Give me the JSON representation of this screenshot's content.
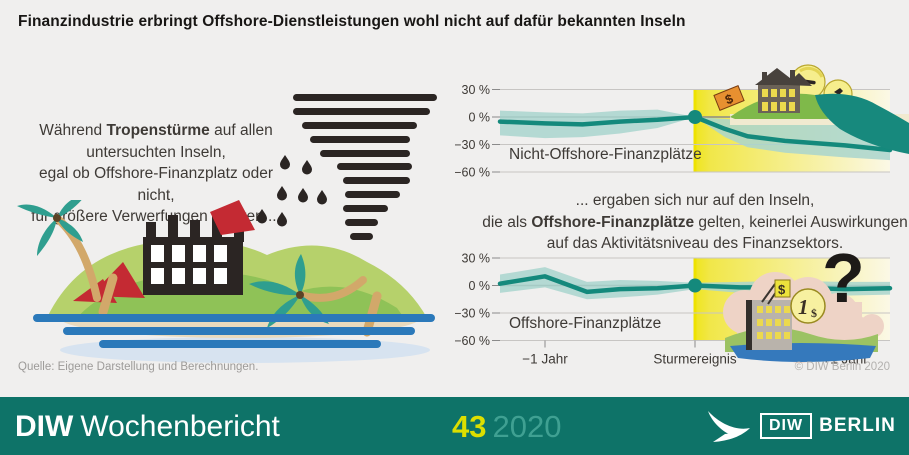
{
  "header": {
    "title": "Finanzindustrie erbringt Offshore-Dienstleistungen wohl nicht auf dafür bekannten Inseln"
  },
  "left_panel": {
    "narrative": {
      "line1_pre": "Während ",
      "line1_bold": "Tropenstürme",
      "line1_post": " auf allen",
      "line2": "untersuchten Inseln,",
      "line3": "egal ob Offshore-Finanzplatz oder nicht,",
      "line4": "für größere Verwerfungen sorgten ..."
    }
  },
  "right_panel": {
    "narrative": {
      "line1": "... ergaben sich nur auf den Inseln,",
      "line2_pre": "die als ",
      "line2_bold": "Offshore-Finanzplätze",
      "line2_post": " gelten, keinerlei Auswirkungen",
      "line3": "auf das Aktivitätsniveau des Finanzsektors."
    }
  },
  "chart_data": [
    {
      "type": "line",
      "label": "Nicht-Offshore-Finanzplätze",
      "ylim": [
        -60,
        30
      ],
      "yticks": [
        30,
        0,
        -30,
        -60
      ],
      "ytick_labels": [
        "30 %",
        "0 %",
        "−30 %",
        "−60 %"
      ],
      "xlim": [
        -1.3,
        1.3
      ],
      "xticks": [
        -1,
        0,
        1
      ],
      "xtick_labels": [
        "−1 Jahr",
        "Sturmereignis",
        "+1 Jahr"
      ],
      "show_x_labels": false,
      "event_x": 0,
      "x": [
        -1.3,
        -1.0,
        -0.75,
        -0.5,
        -0.25,
        0,
        0.2,
        0.35,
        0.6,
        1.0,
        1.3
      ],
      "y": [
        -5,
        -7,
        -8,
        -5,
        -3,
        0,
        -13,
        -21,
        -26,
        -31,
        -36
      ],
      "band_upper": [
        7,
        5,
        4,
        7,
        8,
        0,
        -2,
        -4,
        -5,
        -6,
        -7
      ],
      "band_lower": [
        -20,
        -23,
        -22,
        -18,
        -12,
        0,
        -22,
        -33,
        -39,
        -44,
        -47
      ]
    },
    {
      "type": "line",
      "label": "Offshore-Finanzplätze",
      "ylim": [
        -60,
        30
      ],
      "yticks": [
        30,
        0,
        -30,
        -60
      ],
      "ytick_labels": [
        "30 %",
        "0 %",
        "−30 %",
        "−60 %"
      ],
      "xlim": [
        -1.3,
        1.3
      ],
      "xticks": [
        -1,
        0,
        1
      ],
      "xtick_labels": [
        "−1 Jahr",
        "Sturmereignis",
        "+1 Jahr"
      ],
      "show_x_labels": true,
      "event_x": 0,
      "x": [
        -1.3,
        -1.0,
        -0.72,
        -0.5,
        -0.25,
        0,
        0.3,
        0.6,
        1.0,
        1.3
      ],
      "y": [
        2,
        10,
        -7,
        -4,
        -3,
        0,
        -2,
        -2,
        -4,
        -3
      ],
      "band_upper": [
        12,
        20,
        4,
        6,
        5,
        3,
        4,
        5,
        4,
        4
      ],
      "band_lower": [
        -8,
        -2,
        -15,
        -13,
        -10,
        -4,
        -8,
        -10,
        -11,
        -10
      ]
    }
  ],
  "source": "Quelle: Eigene Darstellung und Berechnungen.",
  "copyright": "© DIW Berlin 2020",
  "footer": {
    "brand_bold": "DIW",
    "brand_regular": "Wochenbericht",
    "issue": "43",
    "year": "2020",
    "logo": {
      "diw": "DIW",
      "berlin": "BERLIN"
    }
  },
  "palette": {
    "line": "#14897c",
    "band": "#a9d5ce",
    "event_yellow_bright": "#f0e51d",
    "event_yellow_fade": "#fbf8e6",
    "grid": "#c7c5c3",
    "zero_line": "#8a8a8a",
    "axis_text": "#3e3a36",
    "background": "#f0efee",
    "footer_bg": "#0e7368",
    "issue_color": "#dcdf00",
    "year_color": "#3fa092",
    "ink": "#2b2523",
    "red": "#c42a33"
  }
}
